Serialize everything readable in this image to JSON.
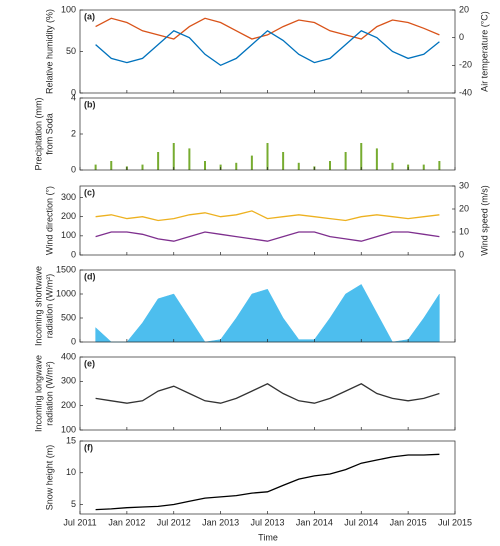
{
  "shared_x": {
    "xlim": [
      "2011-07",
      "2015-07"
    ],
    "xticks": [
      {
        "value": "2011-07",
        "label": "Jul 2011"
      },
      {
        "value": "2012-01",
        "label": "Jan 2012"
      },
      {
        "value": "2012-07",
        "label": "Jul 2012"
      },
      {
        "value": "2013-01",
        "label": "Jan 2013"
      },
      {
        "value": "2013-07",
        "label": "Jul 2013"
      },
      {
        "value": "2014-01",
        "label": "Jan 2014"
      },
      {
        "value": "2014-07",
        "label": "Jul 2014"
      },
      {
        "value": "2015-01",
        "label": "Jan 2015"
      },
      {
        "value": "2015-07",
        "label": "Jul 2015"
      }
    ],
    "xlabel": "Time"
  },
  "chart_data": [
    {
      "type": "line",
      "panel_label": "(a)",
      "x": [
        "2011-09",
        "2011-11",
        "2012-01",
        "2012-03",
        "2012-05",
        "2012-07",
        "2012-09",
        "2012-11",
        "2013-01",
        "2013-03",
        "2013-05",
        "2013-07",
        "2013-09",
        "2013-11",
        "2014-01",
        "2014-03",
        "2014-05",
        "2014-07",
        "2014-09",
        "2014-11",
        "2015-01",
        "2015-03",
        "2015-05"
      ],
      "ylabel": [
        "Relative humidity (%)"
      ],
      "y2label": [
        "Air temperature (°C)"
      ],
      "ylim": [
        0,
        100
      ],
      "yticks": [
        0,
        50,
        100
      ],
      "y2lim": [
        -40,
        20
      ],
      "y2ticks": [
        -40,
        -20,
        0,
        20
      ],
      "series": [
        {
          "name": "Relative humidity",
          "color": "#d95319",
          "values": [
            80,
            90,
            85,
            75,
            70,
            65,
            80,
            90,
            85,
            75,
            65,
            70,
            80,
            88,
            85,
            75,
            70,
            65,
            80,
            88,
            85,
            78,
            70
          ]
        },
        {
          "name": "Air temperature",
          "color": "#0072bd",
          "axis": "y2",
          "values": [
            -5,
            -15,
            -18,
            -15,
            -5,
            5,
            0,
            -12,
            -20,
            -15,
            -5,
            5,
            -2,
            -12,
            -18,
            -15,
            -5,
            5,
            0,
            -10,
            -15,
            -12,
            -3
          ]
        }
      ]
    },
    {
      "type": "bar",
      "panel_label": "(b)",
      "x": [
        "2011-09",
        "2011-11",
        "2012-01",
        "2012-03",
        "2012-05",
        "2012-07",
        "2012-09",
        "2012-11",
        "2013-01",
        "2013-03",
        "2013-05",
        "2013-07",
        "2013-09",
        "2013-11",
        "2014-01",
        "2014-03",
        "2014-05",
        "2014-07",
        "2014-09",
        "2014-11",
        "2015-01",
        "2015-03",
        "2015-05"
      ],
      "ylabel": [
        "Precipitation (mm)",
        "from Soda"
      ],
      "ylim": [
        0,
        4
      ],
      "yticks": [
        0,
        2,
        4
      ],
      "series": [
        {
          "name": "Precipitation",
          "color": "#77ac30",
          "values": [
            0.3,
            0.5,
            0.2,
            0.3,
            1.0,
            1.5,
            1.2,
            0.5,
            0.3,
            0.4,
            0.8,
            1.5,
            1.0,
            0.4,
            0.2,
            0.5,
            1.0,
            1.5,
            1.2,
            0.4,
            0.3,
            0.3,
            0.5
          ]
        }
      ]
    },
    {
      "type": "line",
      "panel_label": "(c)",
      "x": [
        "2011-09",
        "2011-11",
        "2012-01",
        "2012-03",
        "2012-05",
        "2012-07",
        "2012-09",
        "2012-11",
        "2013-01",
        "2013-03",
        "2013-05",
        "2013-07",
        "2013-09",
        "2013-11",
        "2014-01",
        "2014-03",
        "2014-05",
        "2014-07",
        "2014-09",
        "2014-11",
        "2015-01",
        "2015-03",
        "2015-05"
      ],
      "ylabel": [
        "Wind direction (°)"
      ],
      "y2label": [
        "Wind speed (m/s)"
      ],
      "ylim": [
        0,
        360
      ],
      "yticks": [
        0,
        100,
        200,
        300
      ],
      "y2lim": [
        0,
        30
      ],
      "y2ticks": [
        0,
        10,
        20,
        30
      ],
      "series": [
        {
          "name": "Wind direction",
          "color": "#edb120",
          "values": [
            200,
            210,
            190,
            200,
            180,
            190,
            210,
            220,
            200,
            210,
            230,
            190,
            200,
            210,
            200,
            190,
            180,
            200,
            210,
            200,
            190,
            200,
            210
          ]
        },
        {
          "name": "Wind speed",
          "color": "#7e2f8e",
          "axis": "y2",
          "values": [
            8,
            10,
            10,
            9,
            7,
            6,
            8,
            10,
            9,
            8,
            7,
            6,
            8,
            10,
            10,
            8,
            7,
            6,
            8,
            10,
            10,
            9,
            8
          ]
        }
      ]
    },
    {
      "type": "area",
      "panel_label": "(d)",
      "x": [
        "2011-09",
        "2011-11",
        "2012-01",
        "2012-03",
        "2012-05",
        "2012-07",
        "2012-09",
        "2012-11",
        "2013-01",
        "2013-03",
        "2013-05",
        "2013-07",
        "2013-09",
        "2013-11",
        "2014-01",
        "2014-03",
        "2014-05",
        "2014-07",
        "2014-09",
        "2014-11",
        "2015-01",
        "2015-03",
        "2015-05"
      ],
      "ylabel": [
        "Incoming shortwave",
        "radiation (W/m²)"
      ],
      "ylim": [
        0,
        1500
      ],
      "yticks": [
        0,
        500,
        1000,
        1500
      ],
      "series": [
        {
          "name": "Incoming shortwave radiation",
          "color": "#4dbeee",
          "values": [
            300,
            0,
            0,
            400,
            900,
            1000,
            500,
            0,
            50,
            500,
            1000,
            1100,
            500,
            50,
            50,
            500,
            1000,
            1200,
            600,
            0,
            50,
            500,
            1000
          ]
        }
      ]
    },
    {
      "type": "line",
      "panel_label": "(e)",
      "x": [
        "2011-09",
        "2011-11",
        "2012-01",
        "2012-03",
        "2012-05",
        "2012-07",
        "2012-09",
        "2012-11",
        "2013-01",
        "2013-03",
        "2013-05",
        "2013-07",
        "2013-09",
        "2013-11",
        "2014-01",
        "2014-03",
        "2014-05",
        "2014-07",
        "2014-09",
        "2014-11",
        "2015-01",
        "2015-03",
        "2015-05"
      ],
      "ylabel": [
        "Incoming longwave",
        "radiation (W/m²)"
      ],
      "ylim": [
        100,
        400
      ],
      "yticks": [
        100,
        200,
        300,
        400
      ],
      "series": [
        {
          "name": "Incoming longwave radiation",
          "color": "#333333",
          "values": [
            230,
            220,
            210,
            220,
            260,
            280,
            250,
            220,
            210,
            230,
            260,
            290,
            250,
            220,
            210,
            230,
            260,
            290,
            250,
            230,
            220,
            230,
            250
          ]
        }
      ]
    },
    {
      "type": "line",
      "panel_label": "(f)",
      "x": [
        "2011-09",
        "2011-11",
        "2012-01",
        "2012-03",
        "2012-05",
        "2012-07",
        "2012-09",
        "2012-11",
        "2013-01",
        "2013-03",
        "2013-05",
        "2013-07",
        "2013-09",
        "2013-11",
        "2014-01",
        "2014-03",
        "2014-05",
        "2014-07",
        "2014-09",
        "2014-11",
        "2015-01",
        "2015-03",
        "2015-05"
      ],
      "ylabel": [
        "Snow height (m)"
      ],
      "ylim": [
        3.5,
        15
      ],
      "yticks": [
        5,
        10,
        15
      ],
      "series": [
        {
          "name": "Snow height",
          "color": "#000000",
          "values": [
            4.2,
            4.3,
            4.5,
            4.6,
            4.7,
            5.0,
            5.5,
            6.0,
            6.2,
            6.4,
            6.8,
            7.0,
            8.0,
            9.0,
            9.5,
            9.8,
            10.5,
            11.5,
            12.0,
            12.5,
            12.8,
            12.8,
            12.9
          ]
        }
      ]
    }
  ]
}
